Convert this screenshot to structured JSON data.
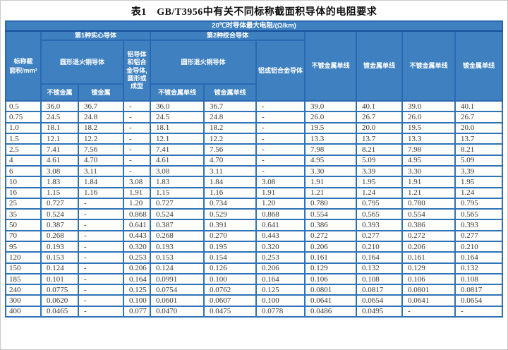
{
  "title": "表1　GB/T3956中有关不同标称截面积导体的电阻要求",
  "colors": {
    "header_bg": "#3f80c1",
    "cell_border": "#2e73b7",
    "outer_border": "#1d5ca8",
    "header_text": "#ffffff",
    "data_text": "#3a3a3a"
  },
  "header": {
    "unit": "20℃时导体最大电阻/(Ω/km)",
    "area_line1": "标称截",
    "area_line2": "面积/mm²",
    "group1": "第1种实心导体",
    "group2": "第2种绞合导体",
    "copper1": "圆形退火铜导体",
    "alu1": "铝导体和铝合金导体,圆形或成型",
    "copper2": "圆形退火铜导体",
    "alu2": "铝或铝合金导体",
    "sub1": "不镀金属",
    "sub2": "镀金属",
    "sub3": "不镀金属单线",
    "sub4": "镀金属单线",
    "col8": "不镀金属单线",
    "col9": "镀金属单线",
    "col10": "不镀金属单线",
    "col11": "镀金属单线"
  },
  "rows": [
    [
      "0.5",
      "36.0",
      "36.7",
      "-",
      "36.0",
      "36.7",
      "-",
      "39.0",
      "40.1",
      "39.0",
      "40.1"
    ],
    [
      "0.75",
      "24.5",
      "24.8",
      "-",
      "24.5",
      "24.8",
      "-",
      "26.0",
      "26.7",
      "26.0",
      "26.7"
    ],
    [
      "1.0",
      "18.1",
      "18.2",
      "-",
      "18.1",
      "18.2",
      "-",
      "19.5",
      "20.0",
      "19.5",
      "20.0"
    ],
    [
      "1.5",
      "12.1",
      "12.2",
      "-",
      "12.1",
      "12.2",
      "-",
      "13.3",
      "13.7",
      "13.3",
      "13.7"
    ],
    [
      "2.5",
      "7.41",
      "7.56",
      "-",
      "7.41",
      "7.56",
      "-",
      "7.98",
      "8.21",
      "7.98",
      "8.21"
    ],
    [
      "4",
      "4.61",
      "4.70",
      "-",
      "4.61",
      "4.70",
      "-",
      "4.95",
      "5.09",
      "4.95",
      "5.09"
    ],
    [
      "6",
      "3.08",
      "3.11",
      "-",
      "3.08",
      "3.11",
      "-",
      "3.30",
      "3.39",
      "3.30",
      "3.39"
    ],
    [
      "10",
      "1.83",
      "1.84",
      "3.08",
      "1.83",
      "1.84",
      "3.08",
      "1.91",
      "1.95",
      "1.91",
      "1.95"
    ],
    [
      "16",
      "1.15",
      "1.16",
      "1.91",
      "1.15",
      "1.16",
      "1.91",
      "1.21",
      "1.24",
      "1.21",
      "1.24"
    ],
    [
      "25",
      "0.727",
      "-",
      "1.20",
      "0.727",
      "0.734",
      "1.20",
      "0.780",
      "0.795",
      "0.780",
      "0.795"
    ],
    [
      "35",
      "0.524",
      "-",
      "0.868",
      "0.524",
      "0.529",
      "0.868",
      "0.554",
      "0.565",
      "0.554",
      "0.565"
    ],
    [
      "50",
      "0.387",
      "-",
      "0.641",
      "0.387",
      "0.391",
      "0.641",
      "0.386",
      "0.393",
      "0.386",
      "0.393"
    ],
    [
      "70",
      "0.268",
      "-",
      "0.443",
      "0.268",
      "0.270",
      "0.443",
      "0.272",
      "0.277",
      "0.272",
      "0.277"
    ],
    [
      "95",
      "0.193",
      "-",
      "0.320",
      "0.193",
      "0.195",
      "0.320",
      "0.206",
      "0.210",
      "0.206",
      "0.210"
    ],
    [
      "120",
      "0.153",
      "-",
      "0.253",
      "0.153",
      "0.154",
      "0.253",
      "0.161",
      "0.164",
      "0.161",
      "0.164"
    ],
    [
      "150",
      "0.124",
      "-",
      "0.206",
      "0.124",
      "0.126",
      "0.206",
      "0.129",
      "0.132",
      "0.129",
      "0.132"
    ],
    [
      "185",
      "0.101",
      "-",
      "0.164",
      "0.0991",
      "0.100",
      "0.164",
      "0.106",
      "0.108",
      "0.106",
      "0.108"
    ],
    [
      "240",
      "0.0775",
      "-",
      "0.125",
      "0.0754",
      "0.0762",
      "0.125",
      "0.0801",
      "0.0817",
      "0.0801",
      "0.0817"
    ],
    [
      "300",
      "0.0620",
      "-",
      "0.100",
      "0.0601",
      "0.0607",
      "0.100",
      "0.0641",
      "0.0654",
      "0.0641",
      "0.0654"
    ],
    [
      "400",
      "0.0465",
      "-",
      "0.077",
      "0.0470",
      "0.0475",
      "0.0778",
      "0.0486",
      "0.0495",
      "-",
      "-"
    ]
  ]
}
